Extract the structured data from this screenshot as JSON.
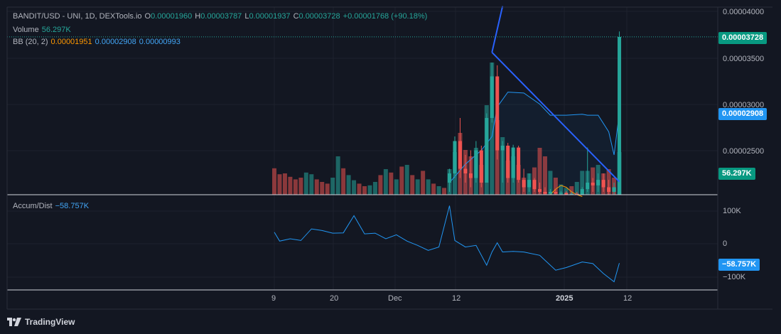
{
  "legend": {
    "symbol": "BANDIT/USD - UNI, 1D, DEXTools.io",
    "o_label": "O",
    "o_value": "0.00001960",
    "h_label": "H",
    "h_value": "0.00003787",
    "l_label": "L",
    "l_value": "0.00001937",
    "c_label": "C",
    "c_value": "0.00003728",
    "change": "+0.00001768 (+90.18%)",
    "volume_label": "Volume",
    "volume_value": "56.297K",
    "bb_label": "BB (20, 2)",
    "bb_basis": "0.00001951",
    "bb_upper": "0.00002908",
    "bb_lower": "0.00000993",
    "ad_label": "Accum/Dist",
    "ad_value": "−58.757K"
  },
  "price_axis": {
    "ticks": [
      "0.00004000",
      "0.00003500",
      "0.00003000",
      "0.00002500"
    ],
    "last_price_tag": "0.00003728",
    "bb_tag": "0.00002908",
    "volume_tag": "56.297K"
  },
  "ad_axis": {
    "ticks": [
      "100K",
      "0",
      "−100K"
    ],
    "value_tag": "−58.757K"
  },
  "time_axis": {
    "ticks": [
      "9",
      "20",
      "Dec",
      "12",
      "2025",
      "12"
    ]
  },
  "footer": {
    "brand": "TradingView"
  },
  "colors": {
    "background": "#131722",
    "up": "#26a69a",
    "down": "#ef5350",
    "bb_upper": "#2962ff",
    "bb_basis": "#ff9800",
    "ad_line": "#2196f3",
    "trendline": "#2962ff"
  },
  "chart_data": [
    {
      "type": "candlestick",
      "title": "BANDIT/USD - UNI, 1D, DEXTools.io",
      "x_range": [
        "2024-11-09",
        "2025-01-13"
      ],
      "ylim": [
        2e-05,
        4e-05
      ],
      "ohlc": [
        {
          "date": "2024-12-12",
          "o": 2.15e-05,
          "h": 2.3e-05,
          "l": 2.05e-05,
          "c": 2.25e-05
        },
        {
          "date": "2024-12-13",
          "o": 2.25e-05,
          "h": 2.65e-05,
          "l": 2.2e-05,
          "c": 2.6e-05
        },
        {
          "date": "2024-12-14",
          "o": 2.6e-05,
          "h": 2.85e-05,
          "l": 2.2e-05,
          "c": 2.3e-05
        },
        {
          "date": "2024-12-15",
          "o": 2.3e-05,
          "h": 2.45e-05,
          "l": 2.15e-05,
          "c": 2.25e-05
        },
        {
          "date": "2024-12-16",
          "o": 2.25e-05,
          "h": 2.5e-05,
          "l": 2.1e-05,
          "c": 2.2e-05
        },
        {
          "date": "2024-12-17",
          "o": 2.2e-05,
          "h": 2.6e-05,
          "l": 2.15e-05,
          "c": 2.5e-05
        },
        {
          "date": "2024-12-18",
          "o": 2.5e-05,
          "h": 2.55e-05,
          "l": 2.1e-05,
          "c": 2.15e-05
        },
        {
          "date": "2024-12-19",
          "o": 2.15e-05,
          "h": 2.9e-05,
          "l": 2.15e-05,
          "c": 2.85e-05
        },
        {
          "date": "2024-12-20",
          "o": 2.85e-05,
          "h": 3.45e-05,
          "l": 2.8e-05,
          "c": 3.3e-05
        },
        {
          "date": "2024-12-21",
          "o": 3.3e-05,
          "h": 3.42e-05,
          "l": 2.4e-05,
          "c": 2.5e-05
        },
        {
          "date": "2024-12-22",
          "o": 2.5e-05,
          "h": 2.6e-05,
          "l": 2.15e-05,
          "c": 2.55e-05
        },
        {
          "date": "2024-12-23",
          "o": 2.55e-05,
          "h": 2.58e-05,
          "l": 2.15e-05,
          "c": 2.2e-05
        },
        {
          "date": "2024-12-24",
          "o": 2.2e-05,
          "h": 2.56e-05,
          "l": 2.15e-05,
          "c": 2.53e-05
        },
        {
          "date": "2024-12-25",
          "o": 2.53e-05,
          "h": 2.55e-05,
          "l": 2.15e-05,
          "c": 2.18e-05
        },
        {
          "date": "2024-12-26",
          "o": 2.18e-05,
          "h": 2.3e-05,
          "l": 2.05e-05,
          "c": 2.1e-05
        },
        {
          "date": "2024-12-27",
          "o": 2.1e-05,
          "h": 2.25e-05,
          "l": 2.05e-05,
          "c": 2.18e-05
        },
        {
          "date": "2024-12-28",
          "o": 2.18e-05,
          "h": 2.2e-05,
          "l": 2.05e-05,
          "c": 2.08e-05
        },
        {
          "date": "2024-12-29",
          "o": 2.08e-05,
          "h": 2.15e-05,
          "l": 2.03e-05,
          "c": 2.05e-05
        },
        {
          "date": "2024-12-30",
          "o": 2.05e-05,
          "h": 2.1e-05,
          "l": 2e-05,
          "c": 2.03e-05
        },
        {
          "date": "2024-12-31",
          "o": 2.03e-05,
          "h": 2.08e-05,
          "l": 2e-05,
          "c": 2.05e-05
        },
        {
          "date": "2025-01-01",
          "o": 2.05e-05,
          "h": 2.08e-05,
          "l": 2.01e-05,
          "c": 2.03e-05
        },
        {
          "date": "2025-01-02",
          "o": 2.03e-05,
          "h": 2.06e-05,
          "l": 2e-05,
          "c": 2.04e-05
        },
        {
          "date": "2025-01-03",
          "o": 2.04e-05,
          "h": 2.06e-05,
          "l": 2e-05,
          "c": 2.02e-05
        },
        {
          "date": "2025-01-04",
          "o": 2.02e-05,
          "h": 2.05e-05,
          "l": 2e-05,
          "c": 2.03e-05
        },
        {
          "date": "2025-01-05",
          "o": 2.03e-05,
          "h": 2.05e-05,
          "l": 2e-05,
          "c": 2.02e-05
        },
        {
          "date": "2025-01-06",
          "o": 2.02e-05,
          "h": 2.1e-05,
          "l": 2e-05,
          "c": 2.08e-05
        },
        {
          "date": "2025-01-07",
          "o": 2.08e-05,
          "h": 2.53e-05,
          "l": 2.05e-05,
          "c": 2.15e-05
        },
        {
          "date": "2025-01-08",
          "o": 2.15e-05,
          "h": 2.2e-05,
          "l": 2.05e-05,
          "c": 2.12e-05
        },
        {
          "date": "2025-01-09",
          "o": 2.12e-05,
          "h": 2.25e-05,
          "l": 2.05e-05,
          "c": 2.18e-05
        },
        {
          "date": "2025-01-10",
          "o": 2.18e-05,
          "h": 2.25e-05,
          "l": 2.05e-05,
          "c": 2.1e-05
        },
        {
          "date": "2025-01-11",
          "o": 2.1e-05,
          "h": 2.18e-05,
          "l": 2e-05,
          "c": 2.05e-05
        },
        {
          "date": "2025-01-12",
          "o": 2.05e-05,
          "h": 2.15e-05,
          "l": 2e-05,
          "c": 2.1e-05
        },
        {
          "date": "2025-01-13",
          "o": 1.96e-05,
          "h": 3.787e-05,
          "l": 1.937e-05,
          "c": 3.728e-05
        }
      ]
    },
    {
      "type": "bar",
      "title": "Volume",
      "last_value": "56.297K",
      "values": [
        {
          "date": "2024-11-09",
          "v": 0.62,
          "dir": "down"
        },
        {
          "date": "2024-11-10",
          "v": 0.48,
          "dir": "down"
        },
        {
          "date": "2024-11-11",
          "v": 0.5,
          "dir": "down"
        },
        {
          "date": "2024-11-12",
          "v": 0.42,
          "dir": "down"
        },
        {
          "date": "2024-11-13",
          "v": 0.36,
          "dir": "down"
        },
        {
          "date": "2024-11-14",
          "v": 0.4,
          "dir": "down"
        },
        {
          "date": "2024-11-15",
          "v": 0.52,
          "dir": "up"
        },
        {
          "date": "2024-11-16",
          "v": 0.48,
          "dir": "up"
        },
        {
          "date": "2024-11-17",
          "v": 0.36,
          "dir": "down"
        },
        {
          "date": "2024-11-18",
          "v": 0.3,
          "dir": "down"
        },
        {
          "date": "2024-11-19",
          "v": 0.26,
          "dir": "down"
        },
        {
          "date": "2024-11-20",
          "v": 0.4,
          "dir": "up"
        },
        {
          "date": "2024-11-21",
          "v": 0.9,
          "dir": "up"
        },
        {
          "date": "2024-11-22",
          "v": 0.62,
          "dir": "down"
        },
        {
          "date": "2024-11-23",
          "v": 0.46,
          "dir": "up"
        },
        {
          "date": "2024-11-24",
          "v": 0.34,
          "dir": "up"
        },
        {
          "date": "2024-11-25",
          "v": 0.26,
          "dir": "down"
        },
        {
          "date": "2024-11-26",
          "v": 0.2,
          "dir": "down"
        },
        {
          "date": "2024-11-27",
          "v": 0.22,
          "dir": "up"
        },
        {
          "date": "2024-11-28",
          "v": 0.3,
          "dir": "up"
        },
        {
          "date": "2024-11-29",
          "v": 0.46,
          "dir": "down"
        },
        {
          "date": "2024-11-30",
          "v": 0.6,
          "dir": "up"
        },
        {
          "date": "2024-12-01",
          "v": 0.52,
          "dir": "down"
        },
        {
          "date": "2024-12-02",
          "v": 0.36,
          "dir": "up"
        },
        {
          "date": "2024-12-03",
          "v": 0.66,
          "dir": "down"
        },
        {
          "date": "2024-12-04",
          "v": 0.7,
          "dir": "up"
        },
        {
          "date": "2024-12-05",
          "v": 0.46,
          "dir": "down"
        },
        {
          "date": "2024-12-06",
          "v": 0.36,
          "dir": "up"
        },
        {
          "date": "2024-12-07",
          "v": 0.56,
          "dir": "down"
        },
        {
          "date": "2024-12-08",
          "v": 0.36,
          "dir": "up"
        },
        {
          "date": "2024-12-09",
          "v": 0.26,
          "dir": "down"
        },
        {
          "date": "2024-12-10",
          "v": 0.2,
          "dir": "up"
        },
        {
          "date": "2024-12-11",
          "v": 0.16,
          "dir": "down"
        },
        {
          "date": "2024-12-12",
          "v": 0.6,
          "dir": "up"
        },
        {
          "date": "2024-12-13",
          "v": 1.0,
          "dir": "up"
        },
        {
          "date": "2024-12-14",
          "v": 1.45,
          "dir": "down"
        },
        {
          "date": "2024-12-15",
          "v": 1.05,
          "dir": "down"
        },
        {
          "date": "2024-12-16",
          "v": 0.9,
          "dir": "down"
        },
        {
          "date": "2024-12-17",
          "v": 1.1,
          "dir": "up"
        },
        {
          "date": "2024-12-18",
          "v": 0.7,
          "dir": "down"
        },
        {
          "date": "2024-12-19",
          "v": 2.1,
          "dir": "up"
        },
        {
          "date": "2024-12-20",
          "v": 3.1,
          "dir": "up"
        },
        {
          "date": "2024-12-21",
          "v": 1.75,
          "dir": "down"
        },
        {
          "date": "2024-12-22",
          "v": 1.35,
          "dir": "up"
        },
        {
          "date": "2024-12-23",
          "v": 0.8,
          "dir": "down"
        },
        {
          "date": "2024-12-24",
          "v": 0.9,
          "dir": "up"
        },
        {
          "date": "2024-12-25",
          "v": 0.7,
          "dir": "down"
        },
        {
          "date": "2024-12-26",
          "v": 0.4,
          "dir": "down"
        },
        {
          "date": "2024-12-27",
          "v": 0.5,
          "dir": "up"
        },
        {
          "date": "2024-12-28",
          "v": 0.64,
          "dir": "down"
        },
        {
          "date": "2024-12-29",
          "v": 1.1,
          "dir": "down"
        },
        {
          "date": "2024-12-30",
          "v": 0.9,
          "dir": "down"
        },
        {
          "date": "2024-12-31",
          "v": 0.56,
          "dir": "up"
        },
        {
          "date": "2025-01-01",
          "v": 0.4,
          "dir": "down"
        },
        {
          "date": "2025-01-02",
          "v": 0.24,
          "dir": "up"
        },
        {
          "date": "2025-01-03",
          "v": 0.16,
          "dir": "up"
        },
        {
          "date": "2025-01-04",
          "v": 0.2,
          "dir": "down"
        },
        {
          "date": "2025-01-05",
          "v": 0.3,
          "dir": "up"
        },
        {
          "date": "2025-01-06",
          "v": 0.56,
          "dir": "up"
        },
        {
          "date": "2025-01-07",
          "v": 0.56,
          "dir": "up"
        },
        {
          "date": "2025-01-08",
          "v": 0.64,
          "dir": "down"
        },
        {
          "date": "2025-01-09",
          "v": 0.7,
          "dir": "up"
        },
        {
          "date": "2025-01-10",
          "v": 0.5,
          "dir": "down"
        },
        {
          "date": "2025-01-11",
          "v": 0.6,
          "dir": "down"
        },
        {
          "date": "2025-01-12",
          "v": 0.4,
          "dir": "down"
        },
        {
          "date": "2025-01-13",
          "v": 1.0,
          "dir": "up"
        }
      ]
    },
    {
      "type": "line",
      "title": "BB (20, 2)",
      "series": [
        {
          "name": "upper",
          "x": [
            "2024-12-12",
            "2024-12-15",
            "2024-12-18",
            "2024-12-20",
            "2024-12-21",
            "2024-12-23",
            "2024-12-26",
            "2024-12-29",
            "2024-12-31",
            "2025-01-03",
            "2025-01-06",
            "2025-01-07",
            "2025-01-09",
            "2025-01-11",
            "2025-01-12",
            "2025-01-13"
          ],
          "y": [
            2.15e-05,
            2.35e-05,
            2.5e-05,
            2.65e-05,
            2.97e-05,
            3.13e-05,
            3.12e-05,
            3e-05,
            2.88e-05,
            2.88e-05,
            2.89e-05,
            2.88e-05,
            2.88e-05,
            2.7e-05,
            2.45e-05,
            2.908e-05
          ]
        },
        {
          "name": "basis",
          "x": [
            "2024-12-31",
            "2025-01-01",
            "2025-01-02",
            "2025-01-03",
            "2025-01-04",
            "2025-01-05",
            "2025-01-06"
          ],
          "y": [
            2.02e-05,
            2.08e-05,
            2.12e-05,
            2.1e-05,
            2.05e-05,
            2.02e-05,
            2e-05
          ]
        }
      ]
    },
    {
      "type": "line",
      "title": "Accum/Dist",
      "ylim": [
        -140000,
        120000
      ],
      "series": [
        {
          "name": "Accum/Dist",
          "x": [
            "2024-11-09",
            "2024-11-10",
            "2024-11-12",
            "2024-11-14",
            "2024-11-16",
            "2024-11-18",
            "2024-11-20",
            "2024-11-22",
            "2024-11-24",
            "2024-11-26",
            "2024-11-28",
            "2024-11-30",
            "2024-12-02",
            "2024-12-04",
            "2024-12-06",
            "2024-12-08",
            "2024-12-10",
            "2024-12-12",
            "2024-12-13",
            "2024-12-15",
            "2024-12-17",
            "2024-12-19",
            "2024-12-20",
            "2024-12-21",
            "2024-12-22",
            "2024-12-24",
            "2024-12-26",
            "2024-12-29",
            "2025-01-01",
            "2025-01-03",
            "2025-01-06",
            "2025-01-08",
            "2025-01-10",
            "2025-01-12",
            "2025-01-13"
          ],
          "y": [
            35000,
            8000,
            15000,
            10000,
            45000,
            40000,
            32000,
            33000,
            85000,
            30000,
            32000,
            15000,
            27000,
            8000,
            -5000,
            -20000,
            -10000,
            115000,
            10000,
            -10000,
            -5000,
            -65000,
            -25000,
            3000,
            -25000,
            -23000,
            -25000,
            -35000,
            -80000,
            -72000,
            -55000,
            -60000,
            -90000,
            -115000,
            -58757
          ]
        }
      ]
    }
  ]
}
